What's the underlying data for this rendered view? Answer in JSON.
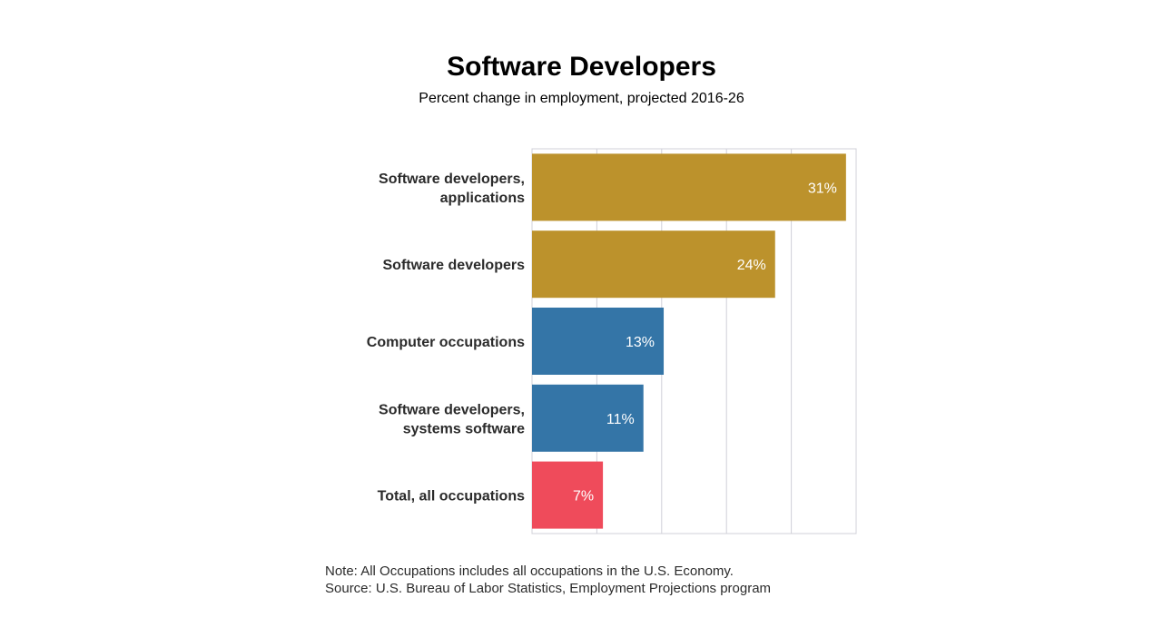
{
  "title": "Software Developers",
  "subtitle": "Percent change in employment, projected 2016-26",
  "note": "Note: All Occupations includes all occupations in the U.S. Economy.",
  "source": "Source: U.S. Bureau of Labor Statistics, Employment Projections program",
  "colors": {
    "software": "#bc922c",
    "computer": "#3475a7",
    "total": "#ef4b5b",
    "grid": "#d0d0d8"
  },
  "chart_data": {
    "type": "bar",
    "orientation": "horizontal",
    "title": "Software Developers",
    "subtitle": "Percent change in employment, projected 2016-26",
    "categories": [
      [
        "Software developers,",
        "applications"
      ],
      [
        "Software developers"
      ],
      [
        "Computer occupations"
      ],
      [
        "Software developers,",
        "systems software"
      ],
      [
        "Total, all occupations"
      ]
    ],
    "values": [
      31,
      24,
      13,
      11,
      7
    ],
    "value_labels": [
      "31%",
      "24%",
      "13%",
      "11%",
      "7%"
    ],
    "bar_colors": [
      "#bc922c",
      "#bc922c",
      "#3475a7",
      "#3475a7",
      "#ef4b5b"
    ],
    "xlim": [
      0,
      32
    ],
    "grid": true,
    "legend": "none"
  }
}
